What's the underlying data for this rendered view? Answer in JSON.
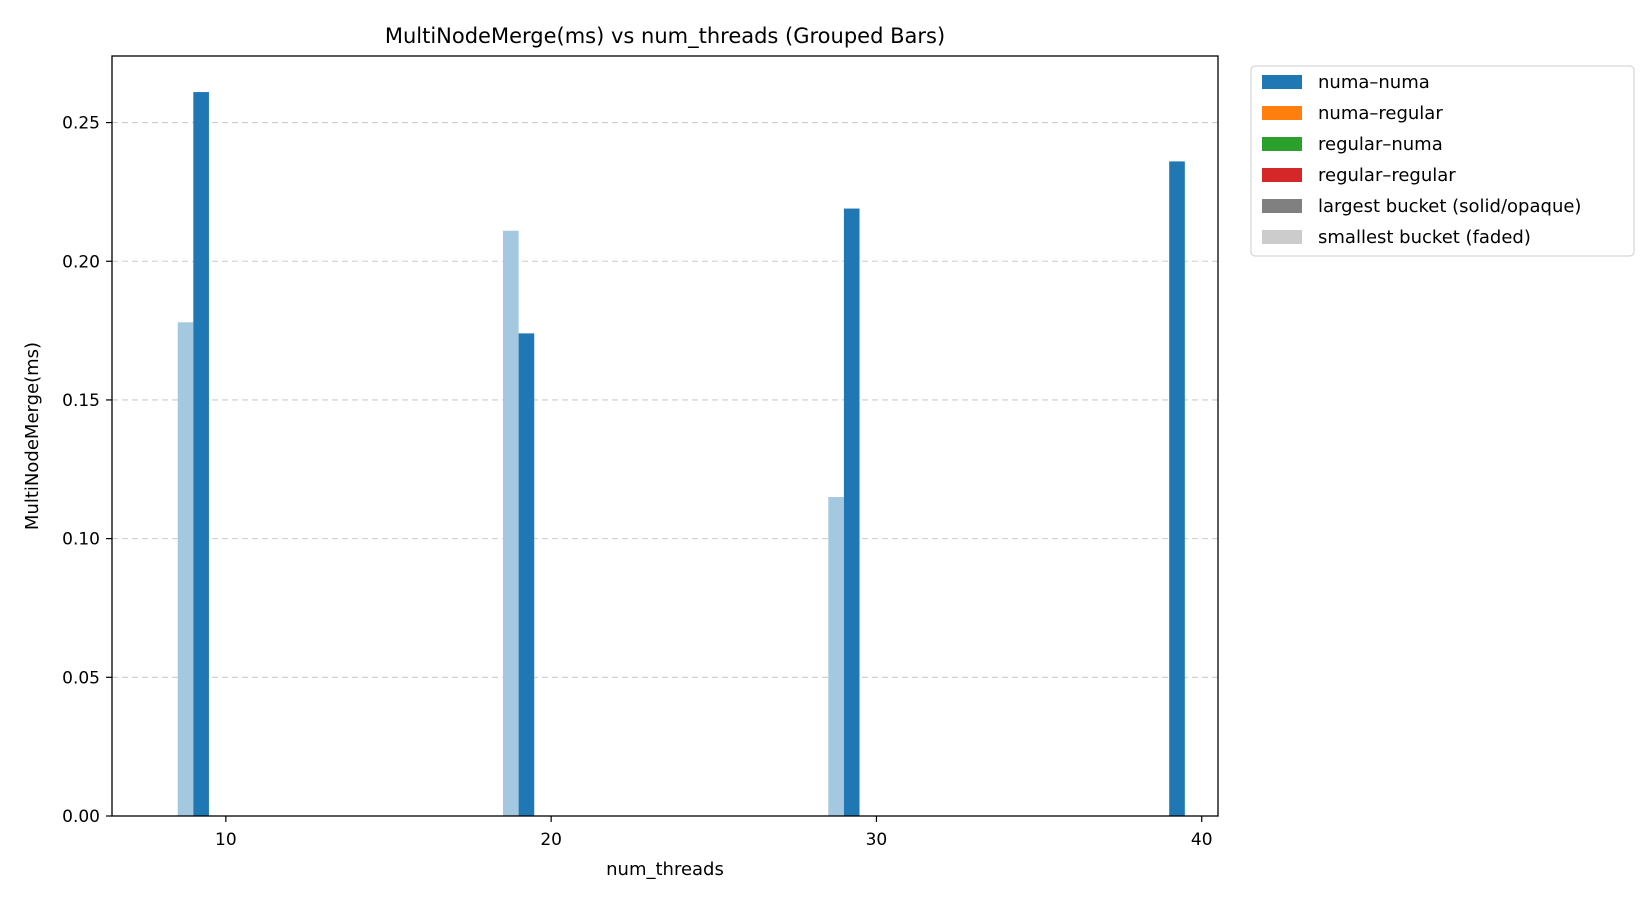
{
  "chart_data": {
    "type": "bar",
    "title": "MultiNodeMerge(ms) vs num_threads (Grouped Bars)",
    "xlabel": "num_threads",
    "ylabel": "MultiNodeMerge(ms)",
    "xlim": [
      6.5,
      40.5
    ],
    "ylim": [
      0,
      0.274
    ],
    "xticks": [
      10,
      20,
      30,
      40
    ],
    "yticks": [
      0.0,
      0.05,
      0.1,
      0.15,
      0.2,
      0.25
    ],
    "xtick_labels": [
      "10",
      "20",
      "30",
      "40"
    ],
    "ytick_labels": [
      "0.00",
      "0.05",
      "0.10",
      "0.15",
      "0.20",
      "0.25"
    ],
    "grid": "y dashed",
    "legend_position": "outside-right",
    "bars": [
      {
        "series": "numa–numa",
        "bucket": "smallest",
        "x": 9.0,
        "slot": -1,
        "value": 0.178
      },
      {
        "series": "numa–numa",
        "bucket": "largest",
        "x": 9.0,
        "slot": 0,
        "value": 0.261
      },
      {
        "series": "numa–numa",
        "bucket": "smallest",
        "x": 19.0,
        "slot": -1,
        "value": 0.211
      },
      {
        "series": "numa–numa",
        "bucket": "largest",
        "x": 19.0,
        "slot": 0,
        "value": 0.174
      },
      {
        "series": "numa–numa",
        "bucket": "smallest",
        "x": 29.0,
        "slot": -1,
        "value": 0.115
      },
      {
        "series": "numa–numa",
        "bucket": "largest",
        "x": 29.0,
        "slot": 0,
        "value": 0.219
      },
      {
        "series": "numa–numa",
        "bucket": "largest",
        "x": 39.0,
        "slot": 0,
        "value": 0.236
      }
    ],
    "legend": [
      {
        "label": "numa–numa",
        "color": "#1f77b4"
      },
      {
        "label": "numa–regular",
        "color": "#ff7f0e"
      },
      {
        "label": "regular–numa",
        "color": "#2ca02c"
      },
      {
        "label": "regular–regular",
        "color": "#d62728"
      },
      {
        "label": "largest bucket (solid/opaque)",
        "color": "#808080"
      },
      {
        "label": "smallest bucket (faded)",
        "color": "#cccccc"
      }
    ],
    "colors": {
      "numa–numa": "#1f77b4",
      "numa–numa_faded": "#a5c8e1"
    }
  }
}
